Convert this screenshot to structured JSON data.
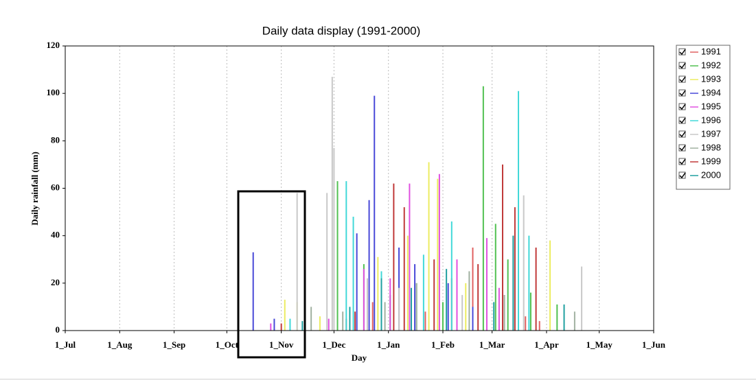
{
  "chart_data": {
    "type": "spike",
    "title": "Daily data display (1991-2000)",
    "x_label": "Day",
    "y_label": "Daily rainfall (mm)",
    "xlim": [
      0,
      335
    ],
    "ylim": [
      0,
      120
    ],
    "xticks": [
      {
        "value": 0,
        "label": "1_Jul"
      },
      {
        "value": 31,
        "label": "1_Aug"
      },
      {
        "value": 62,
        "label": "1_Sep"
      },
      {
        "value": 92,
        "label": "1_Oct"
      },
      {
        "value": 123,
        "label": "1_Nov"
      },
      {
        "value": 153,
        "label": "1_Dec"
      },
      {
        "value": 184,
        "label": "1_Jan"
      },
      {
        "value": 215,
        "label": "1_Feb"
      },
      {
        "value": 243,
        "label": "1_Mar"
      },
      {
        "value": 274,
        "label": "1_Apr"
      },
      {
        "value": 304,
        "label": "1_May"
      },
      {
        "value": 335,
        "label": "1_Jun"
      }
    ],
    "yticks": [
      0,
      20,
      40,
      60,
      80,
      100,
      120
    ],
    "grid": true,
    "legend": "right",
    "series": [
      {
        "name": "1991",
        "color": "#e06060",
        "x": [
          160,
          175,
          190,
          205,
          220,
          232,
          250,
          262,
          270
        ],
        "values": [
          5,
          12,
          18,
          8,
          22,
          35,
          15,
          6,
          4
        ]
      },
      {
        "name": "1992",
        "color": "#50c050",
        "x": [
          155,
          170,
          185,
          200,
          215,
          238,
          245,
          252,
          265,
          280
        ],
        "values": [
          63,
          28,
          15,
          20,
          12,
          103,
          45,
          30,
          16,
          11
        ]
      },
      {
        "name": "1993",
        "color": "#ecec60",
        "x": [
          125,
          132,
          145,
          178,
          195,
          207,
          212,
          228,
          276
        ],
        "values": [
          13,
          12,
          6,
          31,
          40,
          71,
          64,
          20,
          38
        ]
      },
      {
        "name": "1994",
        "color": "#4848d8",
        "x": [
          107,
          119,
          166,
          173,
          176,
          190,
          199,
          218,
          232
        ],
        "values": [
          33,
          5,
          41,
          55,
          99,
          35,
          28,
          20,
          10
        ]
      },
      {
        "name": "1995",
        "color": "#e050e0",
        "x": [
          117,
          150,
          170,
          185,
          196,
          213,
          223,
          240,
          247
        ],
        "values": [
          3,
          5,
          26,
          22,
          62,
          66,
          30,
          39,
          18
        ]
      },
      {
        "name": "1996",
        "color": "#40d8d8",
        "x": [
          128,
          160,
          164,
          180,
          204,
          220,
          258,
          264
        ],
        "values": [
          5,
          63,
          48,
          25,
          32,
          46,
          101,
          40
        ]
      },
      {
        "name": "1997",
        "color": "#c8c8c8",
        "x": [
          132,
          149,
          152,
          153,
          172,
          190,
          226,
          261,
          294
        ],
        "values": [
          58,
          58,
          107,
          77,
          22,
          18,
          15,
          57,
          27
        ]
      },
      {
        "name": "1998",
        "color": "#a0b0a0",
        "x": [
          140,
          158,
          182,
          200,
          230,
          250,
          290
        ],
        "values": [
          10,
          8,
          12,
          20,
          25,
          15,
          8
        ]
      },
      {
        "name": "1999",
        "color": "#c03838",
        "x": [
          123,
          165,
          187,
          193,
          210,
          235,
          249,
          256,
          268
        ],
        "values": [
          3,
          8,
          62,
          52,
          30,
          28,
          70,
          52,
          35
        ]
      },
      {
        "name": "2000",
        "color": "#20a0a0",
        "x": [
          135,
          162,
          180,
          197,
          217,
          244,
          255,
          284
        ],
        "values": [
          4,
          10,
          22,
          18,
          26,
          12,
          40,
          11
        ]
      }
    ]
  }
}
